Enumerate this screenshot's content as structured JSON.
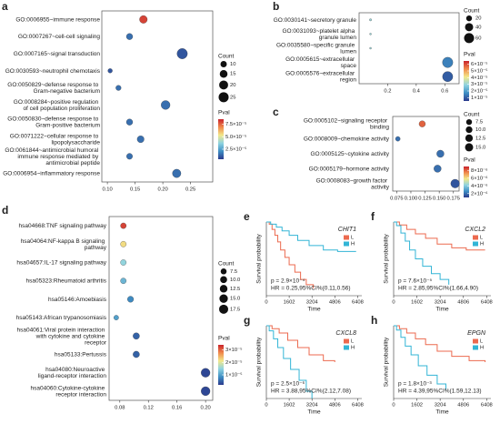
{
  "chart_data": [
    {
      "panel": "a",
      "type": "bubble",
      "categories": [
        "GO:0006955~immune response",
        "GO:0007267~cell-cell signaling",
        "GO:0007165~signal transduction",
        "GO:0030593~neutrophil chemotaxis",
        "GO:0050829~defense response to Gram-negative bacterium",
        "GO:0008284~positive regulation of cell population proliferation",
        "GO:0050830~defense response to Gram-positive bacterium",
        "GO:0071222~cellular response to lipopolysaccharide",
        "GO:0061844~antimicrobial humoral immune response mediated by antimicrobial peptide",
        "GO:0006954~inflammatory response"
      ],
      "values": [
        0.165,
        0.14,
        0.235,
        0.105,
        0.12,
        0.205,
        0.14,
        0.16,
        0.14,
        0.225
      ],
      "counts": [
        15,
        10,
        27,
        5,
        7,
        20,
        10,
        12,
        9,
        18
      ],
      "pvals": [
        8e-05,
        1.5e-05,
        1e-05,
        1e-05,
        1.5e-05,
        1.5e-05,
        1.5e-05,
        1.5e-05,
        1.5e-05,
        1.5e-05
      ],
      "xlim": [
        0.09,
        0.29
      ],
      "xticks": [
        {
          "value": 0.1,
          "label": "0.10"
        },
        0.15,
        {
          "value": 0.2,
          "label": "0.20"
        },
        0.25
      ],
      "size_legend": {
        "title": "Count",
        "values": [
          10,
          15,
          20,
          25
        ]
      },
      "color_legend": {
        "title": "Pval",
        "lim": [
          5e-06,
          8.5e-05
        ],
        "ticks": [
          {
            "value": 2.5e-05,
            "label": "2.5×10⁻⁵"
          },
          {
            "value": 5e-05,
            "label": "5.0×10⁻⁵"
          },
          {
            "value": 7.5e-05,
            "label": "7.5×10⁻⁵"
          }
        ]
      },
      "colormap": [
        "#2b3a8c",
        "#3f8fc4",
        "#8fd3e0",
        "#f2e88a",
        "#f08a4b",
        "#c9222c"
      ]
    },
    {
      "panel": "b",
      "type": "bubble",
      "categories": [
        "GO:0030141~secretory granule",
        "GO:0031093~platelet alpha granule lumen",
        "GO:0035580~specific granule lumen",
        "GO:0005615~extracellular space",
        "GO:0005576~extracellular region"
      ],
      "values": [
        0.08,
        0.08,
        0.08,
        0.62,
        0.62
      ],
      "counts": [
        3,
        2,
        2,
        65,
        63
      ],
      "pvals": [
        3e-05,
        3e-05,
        3e-05,
        1.5e-05,
        1e-05
      ],
      "xlim": [
        0.0,
        0.7
      ],
      "xticks": [
        0.2,
        0.4,
        0.6
      ],
      "size_legend": {
        "title": "Count",
        "values": [
          20,
          40,
          60
        ]
      },
      "color_legend": {
        "title": "Pval",
        "lim": [
          5e-06,
          6.5e-05
        ],
        "ticks": [
          {
            "value": 1e-05,
            "label": "1×10⁻⁵"
          },
          {
            "value": 2e-05,
            "label": "2×10⁻⁵"
          },
          {
            "value": 3e-05,
            "label": "3×10⁻⁵"
          },
          {
            "value": 4e-05,
            "label": "4×10⁻⁵"
          },
          {
            "value": 5e-05,
            "label": "5×10⁻⁵"
          },
          {
            "value": 6e-05,
            "label": "6×10⁻⁵"
          }
        ]
      },
      "colormap": [
        "#2b3a8c",
        "#3f8fc4",
        "#8fd3e0",
        "#f2e88a",
        "#f08a4b",
        "#c9222c"
      ]
    },
    {
      "panel": "c",
      "type": "bubble",
      "categories": [
        "GO:0005102~signaling receptor binding",
        "GO:0008009~chemokine activity",
        "GO:0005125~cytokine activity",
        "GO:0005179~hormone activity",
        "GO:0008083~growth factor activity"
      ],
      "values": [
        0.12,
        0.077,
        0.152,
        0.147,
        0.178
      ],
      "counts": [
        9,
        5,
        12,
        12,
        17
      ],
      "pvals": [
        8e-06,
        2e-06,
        2e-06,
        2e-06,
        1.5e-06
      ],
      "xlim": [
        0.068,
        0.185
      ],
      "xticks": [
        0.075,
        {
          "value": 0.1,
          "label": "0.100"
        },
        0.125,
        {
          "value": 0.15,
          "label": "0.150"
        },
        0.175
      ],
      "size_legend": {
        "title": "Count",
        "values": [
          7.5,
          {
            "value": 10,
            "label": "10.0"
          },
          12.5,
          {
            "value": 15,
            "label": "15.0"
          }
        ]
      },
      "color_legend": {
        "title": "Pval",
        "lim": [
          1e-06,
          9e-06
        ],
        "ticks": [
          {
            "value": 2e-06,
            "label": "2×10⁻⁶"
          },
          {
            "value": 4e-06,
            "label": "4×10⁻⁶"
          },
          {
            "value": 6e-06,
            "label": "6×10⁻⁶"
          },
          {
            "value": 8e-06,
            "label": "8×10⁻⁶"
          }
        ]
      },
      "colormap": [
        "#2b3a8c",
        "#3f8fc4",
        "#8fd3e0",
        "#f2e88a",
        "#f08a4b",
        "#c9222c"
      ]
    },
    {
      "panel": "d",
      "type": "bubble",
      "categories": [
        "hsa04668:TNF signaling pathway",
        "hsa04064:NF-kappa B signaling pathway",
        "hsa04657:IL-17 signaling pathway",
        "hsa05323:Rheumatoid arthritis",
        "hsa05146:Amoebiasis",
        "hsa05143:African trypanosomiasis",
        "hsa04061:Viral protein interaction with cytokine and cytokine receptor",
        "hsa05133:Pertussis",
        "hsa04080:Neuroactive ligand-receptor interaction",
        "hsa04060:Cytokine-cytokine receptor interaction"
      ],
      "values": [
        0.085,
        0.085,
        0.085,
        0.085,
        0.095,
        0.075,
        0.103,
        0.103,
        0.2,
        0.2
      ],
      "counts": [
        7,
        7,
        7,
        7,
        8,
        5,
        9,
        9,
        17,
        17
      ],
      "pvals": [
        3.2e-05,
        2.2e-05,
        1.5e-05,
        1.2e-05,
        8e-06,
        1e-05,
        5e-06,
        5e-06,
        3e-06,
        3e-06
      ],
      "xlim": [
        0.065,
        0.21
      ],
      "xticks": [
        0.08,
        0.12,
        0.16,
        {
          "value": 0.2,
          "label": "0.20"
        }
      ],
      "size_legend": {
        "title": "Count",
        "values": [
          7.5,
          {
            "value": 10,
            "label": "10.0"
          },
          12.5,
          {
            "value": 15,
            "label": "15.0"
          },
          17.5
        ]
      },
      "color_legend": {
        "title": "Pval",
        "lim": [
          2e-06,
          3.4e-05
        ],
        "ticks": [
          {
            "value": 1e-05,
            "label": "1×10⁻⁵"
          },
          {
            "value": 2e-05,
            "label": "2×10⁻⁵"
          },
          {
            "value": 3e-05,
            "label": "3×10⁻⁵"
          }
        ]
      },
      "colormap": [
        "#2b3a8c",
        "#3f8fc4",
        "#8fd3e0",
        "#f2e88a",
        "#f08a4b",
        "#c9222c"
      ]
    },
    {
      "panel": "e",
      "type": "line",
      "step": true,
      "title": "CHIT1",
      "xlabel": "Time",
      "ylabel": "Survival probability",
      "xlim": [
        0,
        6700
      ],
      "ylim": [
        0,
        1
      ],
      "xticks": [
        0,
        1602,
        3204,
        4806,
        6408
      ],
      "series": [
        {
          "name": "L",
          "color": "#ec6a4f",
          "x": [
            0,
            200,
            400,
            600,
            800,
            1000,
            1300,
            1600,
            2000,
            2400,
            2800,
            3300
          ],
          "values": [
            1,
            0.97,
            0.9,
            0.82,
            0.73,
            0.62,
            0.52,
            0.42,
            0.32,
            0.22,
            0.15,
            0.1
          ]
        },
        {
          "name": "H",
          "color": "#33b5d6",
          "x": [
            0,
            300,
            700,
            1100,
            1600,
            2200,
            3000,
            4000,
            5000,
            6300
          ],
          "values": [
            1,
            0.97,
            0.93,
            0.88,
            0.82,
            0.75,
            0.68,
            0.62,
            0.6,
            0.6
          ]
        }
      ],
      "annotations": [
        "p = 2.9×10⁻⁴",
        "HR = 0.25,95%CI%(0.11,0.56)"
      ]
    },
    {
      "panel": "f",
      "type": "line",
      "step": true,
      "title": "CXCL2",
      "xlabel": "Time",
      "ylabel": "Survival probability",
      "xlim": [
        0,
        6700
      ],
      "ylim": [
        0,
        1
      ],
      "xticks": [
        0,
        1602,
        3204,
        4806,
        6408
      ],
      "series": [
        {
          "name": "L",
          "color": "#ec6a4f",
          "x": [
            0,
            400,
            900,
            1500,
            2200,
            3000,
            4000,
            5000,
            6300
          ],
          "values": [
            1,
            0.96,
            0.9,
            0.84,
            0.78,
            0.7,
            0.65,
            0.62,
            0.62
          ]
        },
        {
          "name": "H",
          "color": "#33b5d6",
          "x": [
            0,
            200,
            500,
            800,
            1100,
            1500,
            2000,
            2600,
            3200,
            3800
          ],
          "values": [
            1,
            0.95,
            0.85,
            0.74,
            0.62,
            0.5,
            0.4,
            0.3,
            0.22,
            0.15
          ]
        }
      ],
      "annotations": [
        "p = 7.6×10⁻⁵",
        "HR = 2.85,95%CI%(1.66,4.90)"
      ]
    },
    {
      "panel": "g",
      "type": "line",
      "step": true,
      "title": "CXCL8",
      "xlabel": "Time",
      "ylabel": "Survival probability",
      "xlim": [
        0,
        6700
      ],
      "ylim": [
        0,
        1
      ],
      "xticks": [
        0,
        1602,
        3204,
        4806,
        6408
      ],
      "series": [
        {
          "name": "L",
          "color": "#ec6a4f",
          "x": [
            0,
            400,
            900,
            1500,
            2200,
            3000,
            4000,
            4800
          ],
          "values": [
            1,
            0.96,
            0.9,
            0.8,
            0.7,
            0.6,
            0.52,
            0.5
          ]
        },
        {
          "name": "H",
          "color": "#33b5d6",
          "x": [
            0,
            200,
            500,
            800,
            1200,
            1700,
            2300,
            2800,
            3200
          ],
          "values": [
            1,
            0.93,
            0.82,
            0.7,
            0.55,
            0.4,
            0.25,
            0.1,
            0
          ]
        }
      ],
      "annotations": [
        "p = 2.5×10⁻⁶",
        "HR = 3.88,95%CI%(2.12,7.08)"
      ]
    },
    {
      "panel": "h",
      "type": "line",
      "step": true,
      "title": "EPGN",
      "xlabel": "Time",
      "ylabel": "Survival probability",
      "xlim": [
        0,
        6700
      ],
      "ylim": [
        0,
        1
      ],
      "xticks": [
        0,
        1602,
        3204,
        4806,
        6408
      ],
      "series": [
        {
          "name": "L",
          "color": "#ec6a4f",
          "x": [
            0,
            400,
            900,
            1500,
            2200,
            3000,
            4000,
            5200,
            6300
          ],
          "values": [
            1,
            0.96,
            0.9,
            0.82,
            0.74,
            0.65,
            0.58,
            0.52,
            0.5
          ]
        },
        {
          "name": "H",
          "color": "#33b5d6",
          "x": [
            0,
            200,
            500,
            800,
            1200,
            1700,
            2300,
            3000,
            3600
          ],
          "values": [
            1,
            0.94,
            0.84,
            0.72,
            0.6,
            0.45,
            0.32,
            0.2,
            0.12
          ]
        }
      ],
      "annotations": [
        "p = 1.8×10⁻³",
        "HR = 4.39,95%CI%(1.59,12.13)"
      ]
    }
  ]
}
